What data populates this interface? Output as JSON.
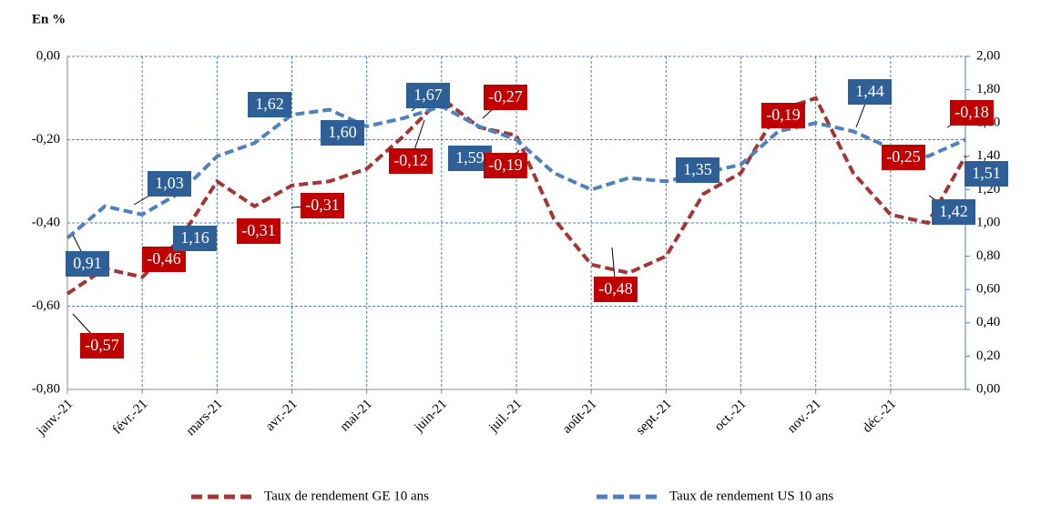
{
  "chart_data": {
    "type": "line",
    "title": "En %",
    "x": [
      0,
      0.5,
      1,
      1.5,
      2,
      2.5,
      3,
      3.5,
      4,
      4.5,
      5,
      5.5,
      6,
      6.5,
      7,
      7.5,
      8,
      8.5,
      9,
      9.5,
      10,
      10.5,
      11,
      11.5,
      12
    ],
    "xlim": [
      0,
      12
    ],
    "xticks": [
      {
        "value": 0,
        "label": "janv.-21"
      },
      {
        "value": 1,
        "label": "févr.-21"
      },
      {
        "value": 2,
        "label": "mars-21"
      },
      {
        "value": 3,
        "label": "avr.-21"
      },
      {
        "value": 4,
        "label": "mai-21"
      },
      {
        "value": 5,
        "label": "juin-21"
      },
      {
        "value": 6,
        "label": "juil.-21"
      },
      {
        "value": 7,
        "label": "août-21"
      },
      {
        "value": 8,
        "label": "sept.-21"
      },
      {
        "value": 9,
        "label": "oct.-21"
      },
      {
        "value": 10,
        "label": "nov.-21"
      },
      {
        "value": 11,
        "label": "déc.-21"
      }
    ],
    "ylim": [
      -0.8,
      0
    ],
    "yticks": [
      {
        "value": -0.8,
        "label": "-0,80"
      },
      {
        "value": -0.6,
        "label": "-0,60"
      },
      {
        "value": -0.4,
        "label": "-0,40"
      },
      {
        "value": -0.2,
        "label": "-0,20"
      },
      {
        "value": 0,
        "label": "0,00"
      }
    ],
    "y2lim": [
      0,
      2
    ],
    "y2ticks": [
      {
        "value": 0,
        "label": "0,00"
      },
      {
        "value": 0.2,
        "label": "0,20"
      },
      {
        "value": 0.4,
        "label": "0,40"
      },
      {
        "value": 0.6,
        "label": "0,60"
      },
      {
        "value": 0.8,
        "label": "0,80"
      },
      {
        "value": 1,
        "label": "1,00"
      },
      {
        "value": 1.2,
        "label": "1,20"
      },
      {
        "value": 1.4,
        "label": "1,40"
      },
      {
        "value": 1.6,
        "label": "1,60"
      },
      {
        "value": 1.8,
        "label": "1,80"
      },
      {
        "value": 2,
        "label": "2,00"
      }
    ],
    "grid": true,
    "series": [
      {
        "name": "Taux de rendement GE 10 ans",
        "color": "#a33634",
        "label_color": "#c00000",
        "values": [
          -0.57,
          -0.51,
          -0.53,
          -0.44,
          -0.3,
          -0.36,
          -0.31,
          -0.3,
          -0.27,
          -0.19,
          -0.1,
          -0.17,
          -0.19,
          -0.39,
          -0.5,
          -0.52,
          -0.48,
          -0.33,
          -0.28,
          -0.13,
          -0.1,
          -0.28,
          -0.38,
          -0.4,
          -0.24
        ]
      },
      {
        "name": "Taux de rendement US 10 ans",
        "color": "#4f81bd",
        "label_color": "#2e5f97",
        "axis": "y2",
        "values": [
          0.91,
          1.1,
          1.05,
          1.18,
          1.4,
          1.48,
          1.65,
          1.68,
          1.58,
          1.63,
          1.7,
          1.58,
          1.5,
          1.3,
          1.2,
          1.27,
          1.25,
          1.3,
          1.35,
          1.55,
          1.6,
          1.55,
          1.45,
          1.4,
          1.5
        ]
      }
    ],
    "annotations": [
      {
        "series": 0,
        "value": -0.57,
        "label": "-0,57"
      },
      {
        "series": 1,
        "value": 0.91,
        "label": "0,91"
      },
      {
        "series": 0,
        "value": -0.46,
        "label": "-0,46"
      },
      {
        "series": 1,
        "value": 1.03,
        "label": "1,03"
      },
      {
        "series": 1,
        "value": 1.16,
        "label": "1,16"
      },
      {
        "series": 0,
        "value": -0.31,
        "label": "-0,31"
      },
      {
        "series": 0,
        "value": -0.31,
        "label": "-0,31"
      },
      {
        "series": 1,
        "value": 1.62,
        "label": "1,62"
      },
      {
        "series": 1,
        "value": 1.6,
        "label": "1,60"
      },
      {
        "series": 0,
        "value": -0.12,
        "label": "-0,12"
      },
      {
        "series": 1,
        "value": 1.67,
        "label": "1,67"
      },
      {
        "series": 1,
        "value": 1.59,
        "label": "1,59"
      },
      {
        "series": 0,
        "value": -0.27,
        "label": "-0,27"
      },
      {
        "series": 0,
        "value": -0.19,
        "label": "-0,19"
      },
      {
        "series": 1,
        "value": 1.35,
        "label": "1,35"
      },
      {
        "series": 0,
        "value": -0.48,
        "label": "-0,48"
      },
      {
        "series": 0,
        "value": -0.19,
        "label": "-0,19"
      },
      {
        "series": 1,
        "value": 1.44,
        "label": "1,44"
      },
      {
        "series": 0,
        "value": -0.25,
        "label": "-0,25"
      },
      {
        "series": 0,
        "value": -0.18,
        "label": "-0,18"
      },
      {
        "series": 1,
        "value": 1.51,
        "label": "1,51"
      },
      {
        "series": 1,
        "value": 1.42,
        "label": "1,42"
      }
    ]
  }
}
